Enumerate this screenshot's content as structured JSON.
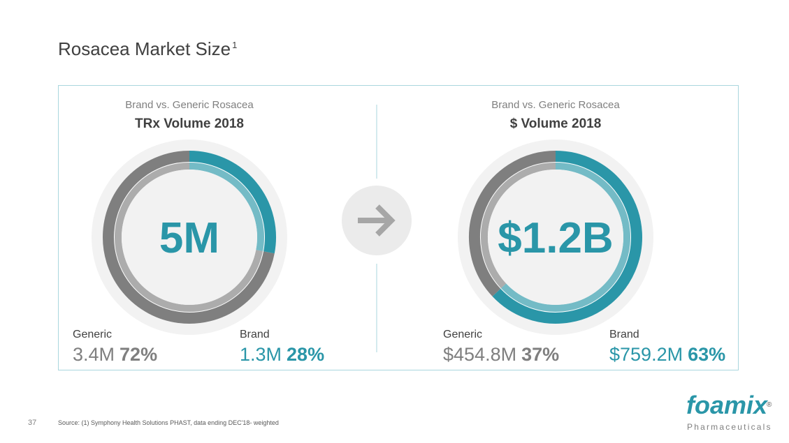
{
  "title": "Rosacea Market Size",
  "title_note": "1",
  "chart_data": [
    {
      "type": "pie",
      "subtitle": "Brand vs. Generic Rosacea",
      "title": "TRx Volume 2018",
      "center_label": "5M",
      "categories": [
        "Generic",
        "Brand"
      ],
      "amounts": [
        "3.4M",
        "1.3M"
      ],
      "values": [
        72,
        28
      ],
      "value_labels": [
        "72%",
        "28%"
      ],
      "colors": [
        "#7f7f7f",
        "#2a96a8"
      ]
    },
    {
      "type": "pie",
      "subtitle": "Brand vs. Generic Rosacea",
      "title": "$ Volume 2018",
      "center_label": "$1.2B",
      "categories": [
        "Generic",
        "Brand"
      ],
      "amounts": [
        "$454.8M",
        "$759.2M"
      ],
      "values": [
        37,
        63
      ],
      "value_labels": [
        "37%",
        "63%"
      ],
      "colors": [
        "#7f7f7f",
        "#2a96a8"
      ]
    }
  ],
  "page_number": "37",
  "source": "Source: (1) Symphony Health Solutions PHAST, data ending DEC'18- weighted",
  "logo": {
    "name": "foamix",
    "mark": "®",
    "tagline": "Pharmaceuticals"
  }
}
